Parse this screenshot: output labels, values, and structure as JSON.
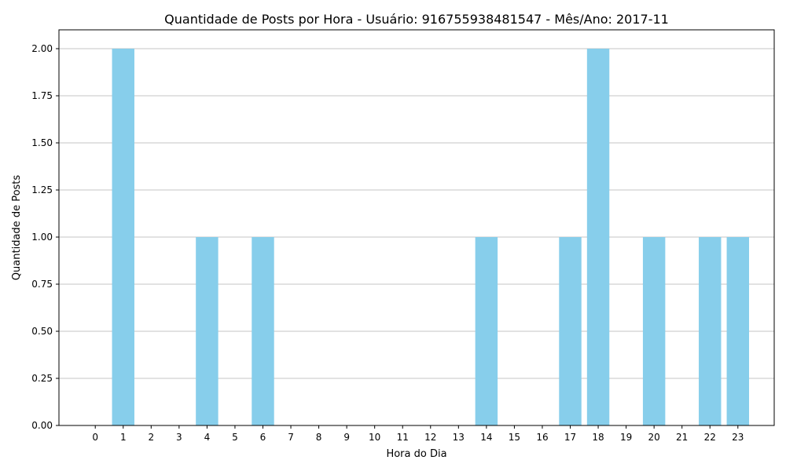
{
  "chart_data": {
    "type": "bar",
    "title": "Quantidade de Posts por Hora - Usuário: 916755938481547 - Mês/Ano: 2017-11",
    "xlabel": "Hora do Dia",
    "ylabel": "Quantidade de Posts",
    "categories": [
      "0",
      "1",
      "2",
      "3",
      "4",
      "5",
      "6",
      "7",
      "8",
      "9",
      "10",
      "11",
      "12",
      "13",
      "14",
      "15",
      "16",
      "17",
      "18",
      "19",
      "20",
      "21",
      "22",
      "23"
    ],
    "values": [
      0,
      2,
      0,
      0,
      1,
      0,
      1,
      0,
      0,
      0,
      0,
      0,
      0,
      0,
      1,
      0,
      0,
      1,
      2,
      0,
      1,
      0,
      1,
      1
    ],
    "ylim": [
      0,
      2.1
    ],
    "yticks": [
      "0.00",
      "0.25",
      "0.50",
      "0.75",
      "1.00",
      "1.25",
      "1.50",
      "1.75",
      "2.00"
    ],
    "grid": "y-axis",
    "bar_color": "#87ceeb",
    "grid_color": "#b0b0b0"
  }
}
